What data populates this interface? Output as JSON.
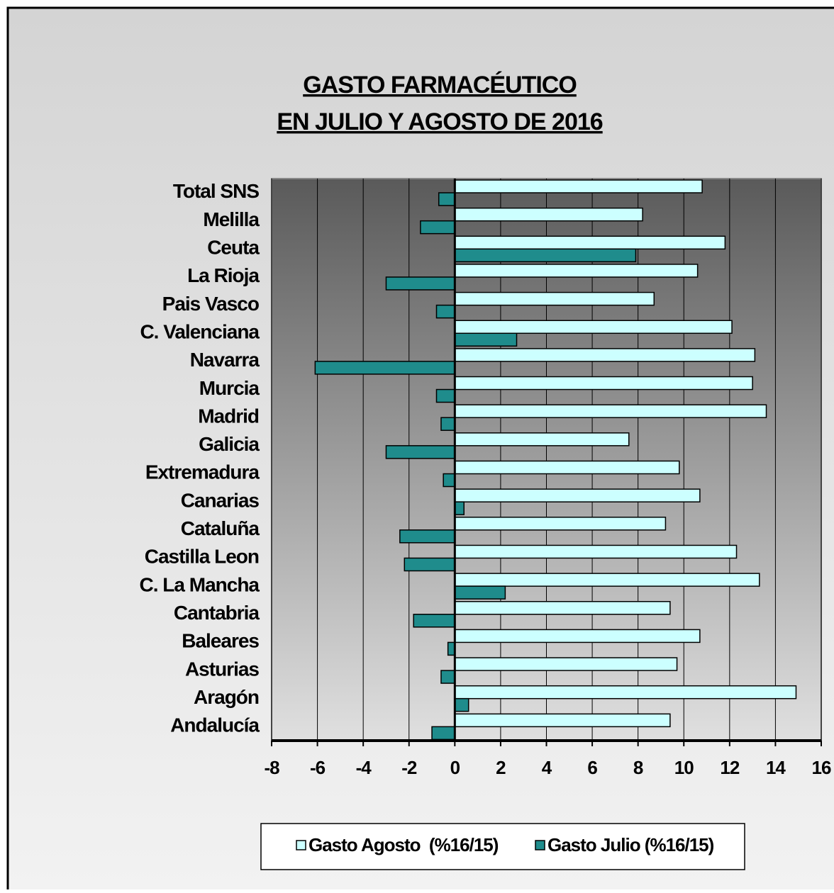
{
  "chart_data": {
    "type": "barh",
    "title": [
      "GASTO FARMACÉUTICO",
      "EN JULIO Y AGOSTO DE 2016"
    ],
    "categories": [
      "Total SNS",
      "Melilla",
      "Ceuta",
      "La Rioja",
      "Pais Vasco",
      "C. Valenciana",
      "Navarra",
      "Murcia",
      "Madrid",
      "Galicia",
      "Extremadura",
      "Canarias",
      "Cataluña",
      "Castilla Leon",
      "C. La Mancha",
      "Cantabria",
      "Baleares",
      "Asturias",
      "Aragón",
      "Andalucía"
    ],
    "series": [
      {
        "name": "Gasto Agosto  (%16/15)",
        "color": "#ccffff",
        "values": [
          10.8,
          8.2,
          11.8,
          10.6,
          8.7,
          12.1,
          13.1,
          13.0,
          13.6,
          7.6,
          9.8,
          10.7,
          9.2,
          12.3,
          13.3,
          9.4,
          10.7,
          9.7,
          14.9,
          9.4
        ]
      },
      {
        "name": "Gasto Julio (%16/15)",
        "color": "#1f8c8c",
        "values": [
          -0.7,
          -1.5,
          7.9,
          -3.0,
          -0.8,
          2.7,
          -6.1,
          -0.8,
          -0.6,
          -3.0,
          -0.5,
          0.4,
          -2.4,
          -2.2,
          2.2,
          -1.8,
          -0.3,
          -0.6,
          0.6,
          -1.0
        ]
      }
    ],
    "xlim": [
      -8,
      16
    ],
    "xticks": [
      -8,
      -6,
      -4,
      -2,
      0,
      2,
      4,
      6,
      8,
      10,
      12,
      14,
      16
    ],
    "grid": true,
    "legend": "bottom"
  }
}
